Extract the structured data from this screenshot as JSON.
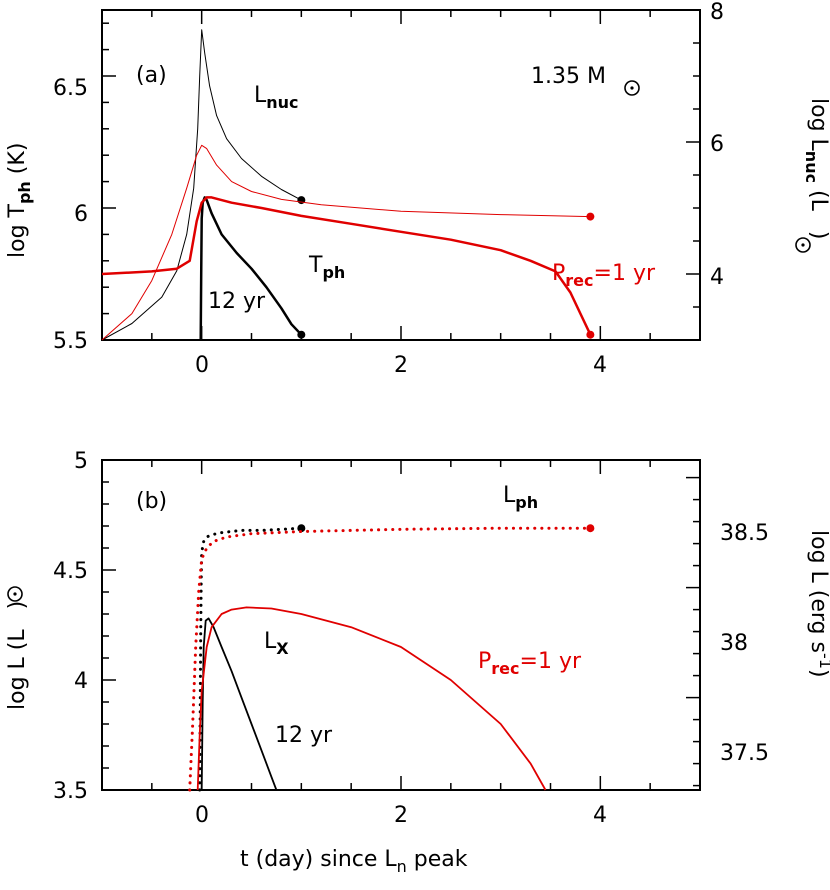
{
  "chart_data": [
    {
      "type": "line",
      "panel_label": "(a)",
      "annotation_mass": "1.35 M",
      "xlim": [
        -1,
        5
      ],
      "x_ticks": [
        "0",
        "2",
        "4"
      ],
      "ylim_left": [
        5.5,
        6.75
      ],
      "y_ticks_left": [
        "5.5",
        "6",
        "6.5"
      ],
      "ylim_right": [
        3.0,
        8.0
      ],
      "y_ticks_right": [
        "4",
        "6",
        "8"
      ],
      "ylabel_left": {
        "main": "log T",
        "sub": "ph",
        "tail": " (K)"
      },
      "ylabel_right": {
        "main": "log L",
        "sub": "nuc",
        "tail": " (L",
        "tail2": ")"
      },
      "labels": {
        "lnuc": {
          "main": "L",
          "sub": "nuc"
        },
        "tph": {
          "main": "T",
          "sub": "ph"
        },
        "black_period": "12 yr",
        "red_period": {
          "main": "P",
          "sub": "rec",
          "tail": "=1 yr"
        }
      },
      "colors": {
        "black": "#000000",
        "red": "#e00000"
      },
      "series": [
        {
          "name": "L_nuc 12 yr",
          "axis": "right",
          "color": "black",
          "width": 1,
          "x": [
            -1.0,
            -0.7,
            -0.4,
            -0.25,
            -0.15,
            -0.08,
            -0.04,
            -0.02,
            0.0,
            0.03,
            0.08,
            0.15,
            0.25,
            0.4,
            0.6,
            0.8,
            1.0
          ],
          "y": [
            3.0,
            3.25,
            3.65,
            4.05,
            4.6,
            5.3,
            6.2,
            7.0,
            7.7,
            7.35,
            6.85,
            6.4,
            6.05,
            5.75,
            5.48,
            5.28,
            5.12
          ],
          "end_marker": true
        },
        {
          "name": "L_nuc 1 yr",
          "axis": "right",
          "color": "red",
          "width": 1,
          "x": [
            -1.0,
            -0.7,
            -0.5,
            -0.3,
            -0.15,
            -0.05,
            0.0,
            0.05,
            0.15,
            0.3,
            0.5,
            0.8,
            1.2,
            2.0,
            3.0,
            3.9
          ],
          "y": [
            3.0,
            3.4,
            3.9,
            4.6,
            5.3,
            5.8,
            5.95,
            5.9,
            5.65,
            5.4,
            5.25,
            5.13,
            5.05,
            4.95,
            4.9,
            4.87
          ],
          "end_marker": true
        },
        {
          "name": "T_ph 12 yr",
          "axis": "left",
          "color": "black",
          "width": 2.5,
          "x": [
            -0.01,
            -0.005,
            0.0,
            0.01,
            0.03,
            0.05,
            0.1,
            0.2,
            0.35,
            0.5,
            0.65,
            0.8,
            0.9,
            1.0
          ],
          "y": [
            5.5,
            5.75,
            5.96,
            6.02,
            6.04,
            6.03,
            5.98,
            5.9,
            5.83,
            5.77,
            5.7,
            5.62,
            5.56,
            5.52
          ],
          "end_marker": true
        },
        {
          "name": "T_ph 1 yr",
          "axis": "left",
          "color": "red",
          "width": 2.5,
          "x": [
            -1.0,
            -0.5,
            -0.25,
            -0.12,
            -0.05,
            0.0,
            0.05,
            0.1,
            0.3,
            0.6,
            1.0,
            1.5,
            2.0,
            2.5,
            3.0,
            3.3,
            3.55,
            3.7,
            3.8,
            3.9
          ],
          "y": [
            5.75,
            5.76,
            5.77,
            5.8,
            5.95,
            6.02,
            6.04,
            6.04,
            6.02,
            6.0,
            5.97,
            5.94,
            5.91,
            5.88,
            5.84,
            5.8,
            5.76,
            5.68,
            5.6,
            5.52
          ],
          "end_marker": true
        }
      ]
    },
    {
      "type": "line",
      "panel_label": "(b)",
      "xlim": [
        -1,
        5
      ],
      "x_ticks": [
        "0",
        "2",
        "4"
      ],
      "ylim_left": [
        3.5,
        5.0
      ],
      "y_ticks_left": [
        "3.5",
        "4",
        "4.5",
        "5"
      ],
      "ylim_right": [
        37.08,
        38.58
      ],
      "y_ticks_right": [
        "37.5",
        "38",
        "38.5"
      ],
      "ylabel_left": {
        "main": "log L (L",
        "tail": ")"
      },
      "ylabel_right": {
        "main": "log L (erg s",
        "sup": "-1",
        "tail": ")"
      },
      "xlabel": {
        "main": "t (day) since L",
        "sub": "n",
        "tail": " peak"
      },
      "labels": {
        "lph": {
          "main": "L",
          "sub": "ph"
        },
        "lx": {
          "main": "L",
          "sub": "X"
        },
        "black_period": "12 yr",
        "red_period": {
          "main": "P",
          "sub": "rec",
          "tail": "=1 yr"
        }
      },
      "colors": {
        "black": "#000000",
        "red": "#e00000"
      },
      "series": [
        {
          "name": "L_ph 12 yr",
          "axis": "left",
          "color": "black",
          "width": 3,
          "dotted": true,
          "x": [
            -0.02,
            -0.015,
            -0.01,
            -0.005,
            0.0,
            0.02,
            0.05,
            0.1,
            0.2,
            0.4,
            0.6,
            0.8,
            1.0
          ],
          "y": [
            3.5,
            3.85,
            4.2,
            4.45,
            4.58,
            4.63,
            4.65,
            4.66,
            4.67,
            4.68,
            4.68,
            4.685,
            4.69
          ],
          "end_marker": true
        },
        {
          "name": "L_ph 1 yr",
          "axis": "left",
          "color": "red",
          "width": 3,
          "dotted": true,
          "x": [
            -0.12,
            -0.09,
            -0.06,
            -0.03,
            0.0,
            0.05,
            0.12,
            0.25,
            0.5,
            1.0,
            2.0,
            3.0,
            3.9
          ],
          "y": [
            3.5,
            3.8,
            4.15,
            4.4,
            4.55,
            4.6,
            4.63,
            4.65,
            4.665,
            4.675,
            4.685,
            4.69,
            4.69
          ],
          "end_marker": true
        },
        {
          "name": "L_X 12 yr",
          "axis": "left",
          "color": "black",
          "width": 1.8,
          "x": [
            0.0,
            0.01,
            0.02,
            0.04,
            0.07,
            0.12,
            0.2,
            0.3,
            0.4,
            0.5,
            0.6,
            0.7,
            0.75
          ],
          "y": [
            3.5,
            3.9,
            4.15,
            4.27,
            4.28,
            4.24,
            4.15,
            4.04,
            3.92,
            3.8,
            3.68,
            3.56,
            3.5
          ],
          "end_marker": false
        },
        {
          "name": "L_X 1 yr",
          "axis": "left",
          "color": "red",
          "width": 1.8,
          "x": [
            -0.04,
            -0.02,
            0.0,
            0.05,
            0.1,
            0.2,
            0.3,
            0.45,
            0.7,
            1.0,
            1.5,
            2.0,
            2.5,
            3.0,
            3.3,
            3.45
          ],
          "y": [
            3.5,
            3.75,
            3.95,
            4.15,
            4.24,
            4.3,
            4.32,
            4.33,
            4.325,
            4.3,
            4.24,
            4.15,
            4.0,
            3.8,
            3.62,
            3.5
          ],
          "end_marker": false
        }
      ]
    }
  ]
}
